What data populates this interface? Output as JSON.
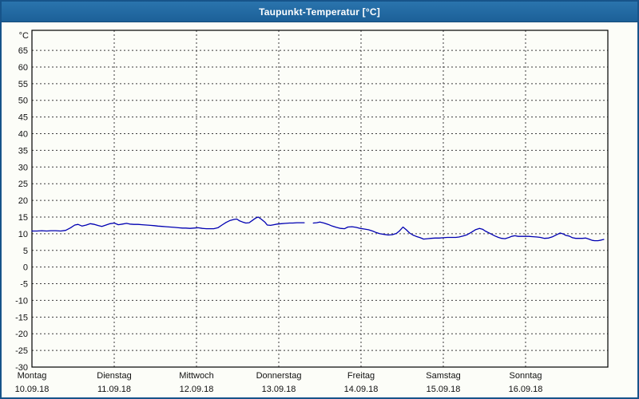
{
  "window": {
    "title": "Taupunkt-Temperatur [°C]"
  },
  "colors": {
    "titlebar_bg": "#1e69a4",
    "titlebar_text": "#ffffff",
    "frame": "#17548a",
    "chart_bg": "#fcfdf8",
    "grid": "#3c3c3c",
    "axis": "#000000",
    "series_line": "#0000b2",
    "label_text": "#111111"
  },
  "chart_data": {
    "type": "line",
    "title": "Taupunkt-Temperatur [°C]",
    "ylabel": "°C",
    "xlabel": "",
    "ylim": [
      -30,
      71
    ],
    "yticks": [
      65,
      60,
      55,
      50,
      45,
      40,
      35,
      30,
      25,
      20,
      15,
      10,
      5,
      0,
      -5,
      -10,
      -15,
      -20,
      -25,
      -30
    ],
    "grid": "dashed",
    "legend": "none",
    "x_days": [
      {
        "name": "Montag",
        "date": "10.09.18"
      },
      {
        "name": "Dienstag",
        "date": "11.09.18"
      },
      {
        "name": "Mittwoch",
        "date": "12.09.18"
      },
      {
        "name": "Donnerstag",
        "date": "13.09.18"
      },
      {
        "name": "Freitag",
        "date": "14.09.18"
      },
      {
        "name": "Samstag",
        "date": "15.09.18"
      },
      {
        "name": "Sonntag",
        "date": "16.09.18"
      }
    ],
    "x_range_days": [
      0,
      7
    ],
    "series": [
      {
        "name": "Taupunkt-Temperatur",
        "color": "#0000b2",
        "unit": "°C",
        "segments": [
          [
            [
              0.0,
              10.8
            ],
            [
              0.06,
              10.8
            ],
            [
              0.12,
              10.9
            ],
            [
              0.18,
              10.8
            ],
            [
              0.23,
              10.9
            ],
            [
              0.29,
              10.9
            ],
            [
              0.35,
              10.8
            ],
            [
              0.41,
              11.0
            ],
            [
              0.47,
              11.8
            ],
            [
              0.52,
              12.6
            ],
            [
              0.56,
              12.8
            ],
            [
              0.61,
              12.3
            ],
            [
              0.66,
              12.6
            ],
            [
              0.71,
              13.0
            ],
            [
              0.76,
              12.8
            ],
            [
              0.81,
              12.4
            ],
            [
              0.85,
              12.2
            ],
            [
              0.9,
              12.6
            ],
            [
              0.95,
              13.0
            ],
            [
              1.0,
              13.2
            ],
            [
              1.05,
              12.7
            ],
            [
              1.1,
              12.9
            ],
            [
              1.15,
              13.1
            ],
            [
              1.19,
              12.9
            ],
            [
              1.24,
              12.8
            ],
            [
              1.29,
              12.8
            ],
            [
              1.34,
              12.7
            ],
            [
              1.39,
              12.6
            ],
            [
              1.44,
              12.5
            ],
            [
              1.49,
              12.4
            ],
            [
              1.53,
              12.3
            ],
            [
              1.58,
              12.2
            ],
            [
              1.63,
              12.1
            ],
            [
              1.68,
              12.0
            ],
            [
              1.73,
              11.9
            ],
            [
              1.78,
              11.8
            ],
            [
              1.83,
              11.7
            ],
            [
              1.87,
              11.7
            ],
            [
              1.92,
              11.6
            ],
            [
              1.97,
              11.7
            ],
            [
              2.02,
              11.8
            ],
            [
              2.07,
              11.6
            ],
            [
              2.12,
              11.5
            ],
            [
              2.17,
              11.5
            ],
            [
              2.21,
              11.5
            ],
            [
              2.26,
              11.8
            ],
            [
              2.31,
              12.6
            ],
            [
              2.36,
              13.4
            ],
            [
              2.41,
              14.0
            ],
            [
              2.46,
              14.3
            ],
            [
              2.49,
              14.4
            ],
            [
              2.52,
              13.9
            ],
            [
              2.56,
              13.5
            ],
            [
              2.6,
              13.2
            ],
            [
              2.64,
              13.3
            ],
            [
              2.68,
              14.0
            ],
            [
              2.72,
              14.7
            ],
            [
              2.75,
              15.0
            ],
            [
              2.79,
              14.3
            ],
            [
              2.83,
              13.5
            ],
            [
              2.86,
              12.6
            ],
            [
              2.9,
              12.5
            ],
            [
              2.94,
              12.7
            ],
            [
              2.98,
              12.9
            ],
            [
              3.03,
              13.0
            ],
            [
              3.08,
              13.1
            ],
            [
              3.13,
              13.2
            ],
            [
              3.17,
              13.2
            ],
            [
              3.22,
              13.3
            ],
            [
              3.27,
              13.3
            ],
            [
              3.31,
              13.3
            ]
          ],
          [
            [
              3.42,
              13.2
            ],
            [
              3.46,
              13.3
            ],
            [
              3.5,
              13.5
            ],
            [
              3.55,
              13.2
            ],
            [
              3.6,
              12.8
            ],
            [
              3.65,
              12.3
            ],
            [
              3.7,
              11.9
            ],
            [
              3.75,
              11.6
            ],
            [
              3.8,
              11.5
            ],
            [
              3.84,
              12.0
            ],
            [
              3.89,
              12.1
            ],
            [
              3.94,
              11.9
            ],
            [
              3.99,
              11.6
            ],
            [
              4.04,
              11.4
            ],
            [
              4.09,
              11.2
            ],
            [
              4.14,
              10.8
            ],
            [
              4.18,
              10.4
            ],
            [
              4.23,
              10.0
            ],
            [
              4.28,
              9.8
            ],
            [
              4.33,
              9.6
            ],
            [
              4.38,
              9.7
            ],
            [
              4.43,
              10.1
            ],
            [
              4.47,
              10.9
            ],
            [
              4.51,
              12.0
            ],
            [
              4.55,
              11.2
            ],
            [
              4.59,
              10.2
            ],
            [
              4.63,
              9.6
            ],
            [
              4.67,
              9.2
            ],
            [
              4.72,
              8.8
            ],
            [
              4.76,
              8.4
            ],
            [
              4.81,
              8.5
            ],
            [
              4.85,
              8.6
            ],
            [
              4.9,
              8.7
            ],
            [
              4.95,
              8.7
            ],
            [
              5.0,
              8.8
            ],
            [
              5.05,
              8.9
            ],
            [
              5.1,
              8.9
            ],
            [
              5.15,
              8.9
            ],
            [
              5.19,
              9.0
            ],
            [
              5.24,
              9.3
            ],
            [
              5.29,
              9.7
            ],
            [
              5.34,
              10.4
            ],
            [
              5.39,
              11.2
            ],
            [
              5.44,
              11.6
            ],
            [
              5.48,
              11.3
            ],
            [
              5.51,
              10.8
            ],
            [
              5.55,
              10.3
            ],
            [
              5.59,
              9.8
            ],
            [
              5.63,
              9.3
            ],
            [
              5.67,
              8.9
            ],
            [
              5.71,
              8.6
            ],
            [
              5.75,
              8.5
            ],
            [
              5.8,
              8.9
            ],
            [
              5.83,
              9.2
            ],
            [
              5.87,
              9.4
            ],
            [
              5.91,
              9.2
            ],
            [
              5.95,
              9.2
            ],
            [
              5.99,
              9.2
            ],
            [
              6.04,
              9.2
            ],
            [
              6.09,
              9.1
            ],
            [
              6.14,
              9.0
            ],
            [
              6.18,
              8.9
            ],
            [
              6.23,
              8.6
            ],
            [
              6.28,
              8.7
            ],
            [
              6.33,
              9.1
            ],
            [
              6.38,
              9.7
            ],
            [
              6.42,
              10.2
            ],
            [
              6.46,
              9.9
            ],
            [
              6.49,
              9.5
            ],
            [
              6.53,
              9.3
            ],
            [
              6.57,
              8.8
            ],
            [
              6.61,
              8.6
            ],
            [
              6.65,
              8.6
            ],
            [
              6.69,
              8.6
            ],
            [
              6.73,
              8.7
            ],
            [
              6.77,
              8.4
            ],
            [
              6.81,
              8.0
            ],
            [
              6.84,
              7.9
            ],
            [
              6.88,
              7.9
            ],
            [
              6.92,
              8.1
            ],
            [
              6.95,
              8.3
            ]
          ]
        ]
      }
    ]
  }
}
